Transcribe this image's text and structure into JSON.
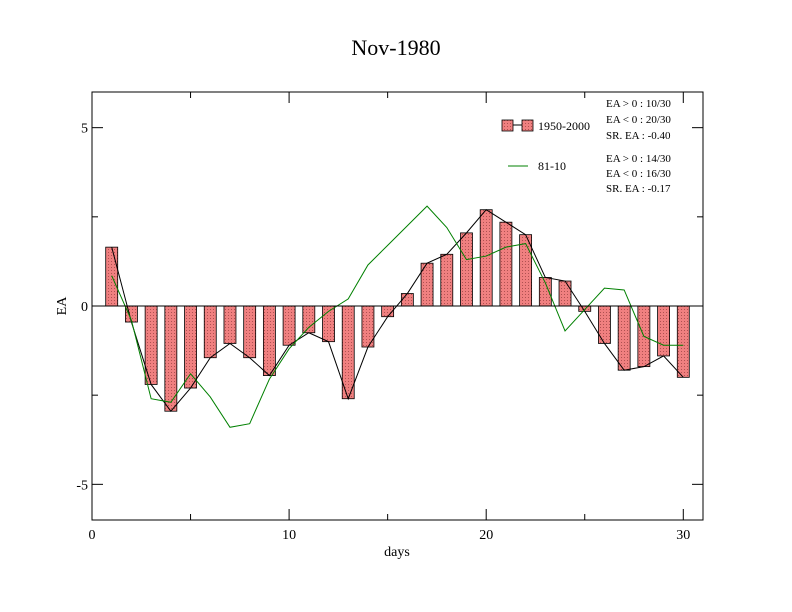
{
  "chart_data": {
    "type": "bar",
    "title": "Nov-1980",
    "xlabel": "days",
    "ylabel": "EA",
    "xlim": [
      0,
      31
    ],
    "ylim": [
      -6,
      6
    ],
    "xticks": [
      0,
      10,
      20,
      30
    ],
    "yticks": [
      -5,
      0,
      5
    ],
    "grid": false,
    "legend_position": "top-right",
    "days": [
      1,
      2,
      3,
      4,
      5,
      6,
      7,
      8,
      9,
      10,
      11,
      12,
      13,
      14,
      15,
      16,
      17,
      18,
      19,
      20,
      21,
      22,
      23,
      24,
      25,
      26,
      27,
      28,
      29,
      30
    ],
    "series": [
      {
        "name": "1950-2000",
        "kind": "bar-with-line",
        "fill_color": "#f08080",
        "line_color": "#000000",
        "values": [
          1.65,
          -0.45,
          -2.2,
          -2.95,
          -2.3,
          -1.45,
          -1.05,
          -1.45,
          -1.95,
          -1.1,
          -0.75,
          -1.0,
          -2.6,
          -1.15,
          -0.3,
          0.35,
          1.2,
          1.45,
          2.05,
          2.7,
          2.35,
          2.0,
          0.8,
          0.7,
          -0.15,
          -1.05,
          -1.8,
          -1.7,
          -1.4,
          -2.0
        ]
      },
      {
        "name": "81-10",
        "kind": "line",
        "line_color": "#008000",
        "values": [
          0.85,
          -0.4,
          -2.6,
          -2.7,
          -1.9,
          -2.55,
          -3.4,
          -3.3,
          -2.05,
          -1.2,
          -0.6,
          -0.15,
          0.2,
          1.15,
          1.7,
          2.25,
          2.8,
          2.2,
          1.3,
          1.4,
          1.65,
          1.75,
          0.65,
          -0.7,
          -0.1,
          0.5,
          0.45,
          -0.85,
          -1.1,
          -1.1
        ]
      }
    ],
    "annotations": [
      [
        "EA > 0 : 10/30",
        "EA < 0 : 20/30",
        "SR. EA : -0.40"
      ],
      [
        "EA > 0 : 14/30",
        "EA < 0 : 16/30",
        "SR. EA : -0.17"
      ]
    ]
  }
}
